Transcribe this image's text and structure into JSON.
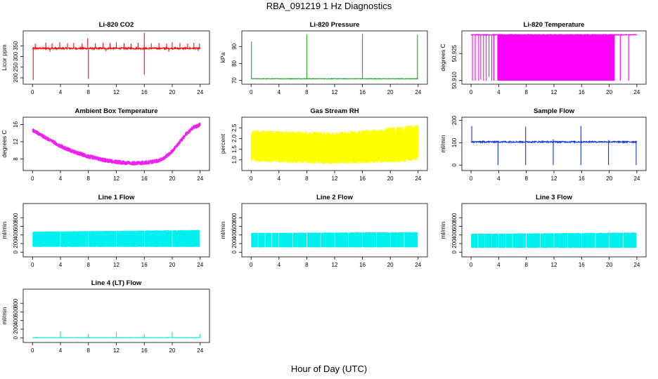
{
  "page": {
    "title": "RBA_091219  1 Hz Diagnostics",
    "x_title": "Hour of Day (UTC)"
  },
  "chart_data": [
    {
      "type": "line",
      "title": "Li-820 CO2",
      "ylabel": "Licor ppm",
      "xlim": [
        0,
        24
      ],
      "ylim": [
        180,
        410
      ],
      "color": "#ee1111",
      "xticks": [
        "0",
        "4",
        "8",
        "12",
        "16",
        "20",
        "24"
      ],
      "yticks": [
        "200",
        "250",
        "300",
        "350"
      ],
      "series": [
        {
          "baseline": 338,
          "noise": 4,
          "spikes_up": [
            [
              0.4,
              360
            ],
            [
              1.9,
              365
            ],
            [
              2.8,
              362
            ],
            [
              3.9,
              366
            ],
            [
              5.0,
              362
            ],
            [
              5.9,
              363
            ],
            [
              7.1,
              360
            ],
            [
              7.9,
              385
            ],
            [
              9.0,
              362
            ],
            [
              10.1,
              364
            ],
            [
              11.1,
              363
            ],
            [
              12.0,
              366
            ],
            [
              13.1,
              362
            ],
            [
              14.1,
              360
            ],
            [
              15.1,
              364
            ],
            [
              16.0,
              410
            ],
            [
              17.0,
              362
            ],
            [
              18.1,
              363
            ],
            [
              19.2,
              361
            ],
            [
              20.0,
              366
            ],
            [
              21.1,
              363
            ],
            [
              22.2,
              361
            ],
            [
              23.1,
              364
            ],
            [
              23.9,
              360
            ]
          ],
          "spikes_down": [
            [
              0.1,
              190
            ],
            [
              8.0,
              195
            ],
            [
              16.0,
              215
            ],
            [
              2.5,
              322
            ],
            [
              10.5,
              325
            ],
            [
              19.5,
              323
            ],
            [
              23.7,
              326
            ]
          ]
        }
      ]
    },
    {
      "type": "line",
      "title": "Li-820 Pressure",
      "ylabel": "kPa",
      "xlim": [
        0,
        24
      ],
      "ylim": [
        69,
        98
      ],
      "color": "#22aa22",
      "xticks": [
        "0",
        "4",
        "8",
        "12",
        "16",
        "20",
        "24"
      ],
      "yticks": [
        "70",
        "80",
        "90"
      ],
      "series": [
        {
          "baseline": 71,
          "noise": 0.15,
          "spikes_up": [
            [
              0.05,
              93
            ],
            [
              8.0,
              97
            ],
            [
              16.0,
              97.5
            ],
            [
              23.9,
              97
            ]
          ],
          "spikes_down": []
        }
      ]
    },
    {
      "type": "line",
      "title": "Li-820 Temperature",
      "ylabel": "degrees C",
      "xlim": [
        0,
        24
      ],
      "ylim": [
        50.909,
        50.9365
      ],
      "color": "#ff00ff",
      "xticks": [
        "0",
        "4",
        "8",
        "12",
        "16",
        "20",
        "24"
      ],
      "yticks": [
        "50.910",
        "50.925"
      ],
      "series": [
        {
          "baseline": 50.9355,
          "noise": 0.0002,
          "dense_band": [
            3.8,
            20.8,
            50.9098,
            50.9355
          ],
          "spikes_down": [
            [
              0.2,
              50.9098
            ],
            [
              0.6,
              50.9098
            ],
            [
              1.1,
              50.9098
            ],
            [
              1.4,
              50.9105
            ],
            [
              1.8,
              50.9098
            ],
            [
              2.2,
              50.9098
            ],
            [
              2.6,
              50.912
            ],
            [
              3.0,
              50.9098
            ],
            [
              3.3,
              50.9098
            ],
            [
              21.6,
              50.9098
            ],
            [
              22.8,
              50.9098
            ]
          ]
        }
      ]
    },
    {
      "type": "line",
      "title": "Ambient Box Temperature",
      "ylabel": "degrees C",
      "xlim": [
        0,
        24
      ],
      "ylim": [
        5.8,
        17.2
      ],
      "color": "#ee22ee",
      "xticks": [
        "0",
        "4",
        "8",
        "12",
        "16",
        "20",
        "24"
      ],
      "yticks": [
        "8",
        "12",
        "16"
      ],
      "series": [
        {
          "x": [
            0,
            2,
            4,
            6,
            8,
            10,
            12,
            14,
            16,
            18,
            19,
            20,
            21,
            22,
            23,
            24
          ],
          "values": [
            14.7,
            12.8,
            11.0,
            9.6,
            8.6,
            7.8,
            7.3,
            7.0,
            7.1,
            7.6,
            8.4,
            9.8,
            11.8,
            13.8,
            15.3,
            15.9
          ],
          "noise": 0.55
        }
      ]
    },
    {
      "type": "line",
      "title": "Gas Stream RH",
      "ylabel": "percent",
      "xlim": [
        0,
        24
      ],
      "ylim": [
        0.6,
        2.9
      ],
      "color": "#ffff00",
      "xticks": [
        "0",
        "4",
        "8",
        "12",
        "16",
        "20",
        "24"
      ],
      "yticks": [
        "1.0",
        "1.5",
        "2.0",
        "2.5"
      ],
      "series": [
        {
          "band_x": [
            0,
            12,
            18,
            22,
            24
          ],
          "band_low": [
            0.9,
            0.8,
            0.85,
            0.9,
            1.0
          ],
          "band_high": [
            2.4,
            2.3,
            2.45,
            2.6,
            2.7
          ]
        }
      ]
    },
    {
      "type": "line",
      "title": "Sample Flow",
      "ylabel": "ml/min",
      "xlim": [
        0,
        24
      ],
      "ylim": [
        -15,
        205
      ],
      "color": "#1133dd",
      "xticks": [
        "0",
        "4",
        "8",
        "12",
        "16",
        "20",
        "24"
      ],
      "yticks": [
        "0",
        "100",
        "200"
      ],
      "series": [
        {
          "baseline": 104,
          "noise": 3,
          "spikes_up": [
            [
              0.1,
              175
            ],
            [
              7.9,
              172
            ],
            [
              15.9,
              175
            ],
            [
              11.9,
              115
            ],
            [
              19.9,
              112
            ]
          ],
          "spikes_down": [
            [
              3.9,
              0
            ],
            [
              7.9,
              0
            ],
            [
              11.9,
              0
            ],
            [
              15.9,
              0
            ],
            [
              19.9,
              0
            ],
            [
              23.9,
              0
            ]
          ]
        }
      ]
    },
    {
      "type": "area",
      "title": "Line 1 Flow",
      "ylabel": "ml/min",
      "xlim": [
        0,
        24
      ],
      "ylim": [
        -60,
        1080
      ],
      "color": "#00f0f0",
      "xticks": [
        "0",
        "4",
        "8",
        "12",
        "16",
        "20",
        "24"
      ],
      "yticks": [
        "0",
        "200",
        "400",
        "600",
        "800"
      ],
      "series": [
        {
          "low": 120,
          "high": 460,
          "high_end": 500,
          "gaps": [
            4.0,
            8.0,
            12.0,
            16.0,
            20.0
          ]
        }
      ]
    },
    {
      "type": "area",
      "title": "Line 2 Flow",
      "ylabel": "ml/min",
      "xlim": [
        0,
        24
      ],
      "ylim": [
        -60,
        1080
      ],
      "color": "#00f0f0",
      "xticks": [
        "0",
        "4",
        "8",
        "12",
        "16",
        "20",
        "24"
      ],
      "yticks": [
        "0",
        "200",
        "400",
        "600",
        "800"
      ],
      "series": [
        {
          "low": 110,
          "high": 430,
          "high_end": 450,
          "gaps": [
            1.0,
            2.0,
            3.0,
            4.0,
            6.0,
            8.0,
            10.0,
            12.0,
            14.0,
            16.0,
            18.0,
            20.0,
            22.0,
            24.0
          ]
        }
      ]
    },
    {
      "type": "area",
      "title": "Line 3 Flow",
      "ylabel": "ml/min",
      "xlim": [
        0,
        24
      ],
      "ylim": [
        -60,
        1080
      ],
      "color": "#00f0f0",
      "xticks": [
        "0",
        "4",
        "8",
        "12",
        "16",
        "20",
        "24"
      ],
      "yticks": [
        "0",
        "200",
        "400",
        "600",
        "800"
      ],
      "series": [
        {
          "low": 100,
          "high": 410,
          "high_end": 440,
          "gaps": [
            1.0,
            2.0,
            3.0,
            4.0,
            5.0,
            6.0,
            8.0,
            10.0,
            12.0,
            14.0,
            16.0,
            18.0,
            20.0,
            22.0
          ]
        }
      ]
    },
    {
      "type": "line",
      "title": "Line 4 (LT) Flow",
      "ylabel": "ml/min",
      "xlim": [
        0,
        24
      ],
      "ylim": [
        -60,
        1080
      ],
      "color": "#00e5e5",
      "xticks": [
        "0",
        "4",
        "8",
        "12",
        "16",
        "20",
        "24"
      ],
      "yticks": [
        "0",
        "200",
        "400",
        "600",
        "800"
      ],
      "series": [
        {
          "baseline": 5,
          "noise": 3,
          "spikes_up": [
            [
              4.0,
              150
            ],
            [
              8.0,
              90
            ],
            [
              12.0,
              140
            ],
            [
              16.0,
              80
            ],
            [
              20.0,
              140
            ],
            [
              24.0,
              90
            ]
          ],
          "spikes_down": []
        }
      ]
    }
  ]
}
